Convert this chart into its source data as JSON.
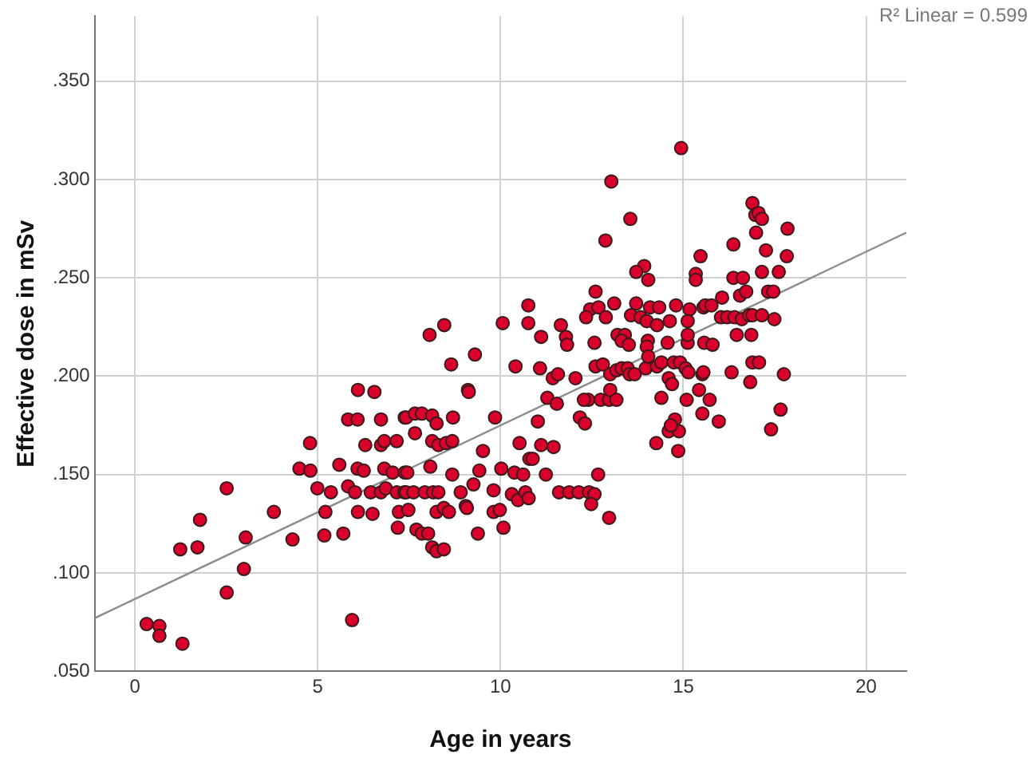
{
  "chart_data": {
    "type": "scatter",
    "xlabel": "Age in years",
    "ylabel": "Effective dose in mSv",
    "annotations": [
      "R² Linear = 0.599"
    ],
    "xlim": [
      -1.1,
      21.1
    ],
    "ylim": [
      0.05,
      0.383
    ],
    "xticks": [
      0,
      5,
      10,
      15,
      20
    ],
    "yticks": [
      {
        "value": 0.05,
        "label": ".050"
      },
      {
        "value": 0.1,
        "label": ".100"
      },
      {
        "value": 0.15,
        "label": ".150"
      },
      {
        "value": 0.2,
        "label": ".200"
      },
      {
        "value": 0.25,
        "label": ".250"
      },
      {
        "value": 0.3,
        "label": ".300"
      },
      {
        "value": 0.35,
        "label": ".350"
      }
    ],
    "grid": true,
    "legend": false,
    "marker": "circle",
    "series": [
      {
        "type": "scatter",
        "color": "#d9002c",
        "x": [
          0.32,
          0.67,
          0.67,
          1.3,
          1.24,
          1.71,
          1.78,
          2.51,
          2.51,
          2.98,
          3.03,
          3.8,
          4.31,
          4.5,
          4.79,
          4.8,
          4.99,
          5.21,
          5.18,
          5.36,
          5.59,
          5.7,
          5.83,
          5.83,
          5.94,
          6.02,
          6.09,
          6.1,
          6.09,
          6.1,
          6.26,
          6.3,
          6.45,
          6.5,
          6.55,
          6.73,
          6.73,
          6.73,
          6.82,
          6.82,
          6.86,
          7.05,
          7.16,
          7.16,
          7.19,
          7.22,
          7.37,
          7.38,
          7.38,
          8.65,
          10.41,
          11.08,
          11.43,
          11.57,
          12.05,
          12.6,
          12.8,
          13.0,
          13.17,
          13.31,
          13.48,
          13.53,
          13.67,
          13.97,
          14.28,
          14.4,
          14.74,
          14.91,
          15.06,
          15.14,
          9.11,
          9.13,
          11.28,
          11.54,
          12.4,
          12.28,
          12.74,
          12.97,
          13.0,
          13.17,
          14.4,
          14.6,
          14.69,
          15.09,
          15.52,
          15.52,
          7.42,
          7.66,
          7.85,
          8.13,
          8.25,
          8.7,
          7.66,
          8.13,
          8.3,
          8.51,
          8.68,
          9.85,
          11.02,
          12.17,
          12.31,
          14.26,
          14.6,
          14.77,
          14.88,
          14.86,
          14.66,
          10.52,
          11.11,
          11.45,
          9.52,
          10.79,
          10.88,
          7.45,
          8.08,
          8.68,
          9.42,
          10.02,
          10.38,
          10.62,
          11.24,
          12.67,
          7.42,
          7.62,
          7.93,
          8.16,
          8.3,
          8.91,
          9.26,
          9.81,
          10.31,
          10.48,
          10.68,
          10.77,
          11.6,
          11.88,
          12.14,
          12.42,
          12.57,
          12.48,
          12.97,
          7.48,
          7.7,
          7.85,
          8.02,
          8.25,
          8.45,
          8.59,
          9.05,
          9.08,
          9.38,
          9.81,
          9.98,
          10.08,
          8.13,
          8.25,
          8.45,
          14.94,
          13.03,
          13.55,
          12.87,
          13.93,
          13.71,
          14.04,
          15.47,
          15.34,
          15.34,
          12.6,
          10.76,
          12.45,
          12.68,
          13.11,
          13.71,
          14.09,
          14.34,
          14.8,
          15.17,
          15.55,
          12.34,
          12.88,
          13.57,
          13.83,
          14.0,
          14.63,
          15.12,
          10.06,
          10.76,
          11.65,
          8.06,
          8.46,
          14.28,
          11.11,
          11.79,
          11.82,
          12.57,
          13.2,
          13.4,
          13.31,
          13.51,
          14.03,
          14.0,
          14.57,
          15.12,
          15.12,
          15.57,
          9.3,
          14.04,
          16.89,
          16.97,
          17.06,
          17.15,
          16.99,
          17.85,
          16.37,
          17.26,
          17.83,
          16.37,
          16.63,
          17.15,
          17.61,
          16.06,
          16.55,
          16.72,
          17.32,
          17.46,
          15.6,
          15.77,
          16.03,
          16.2,
          16.4,
          16.6,
          16.8,
          16.89,
          17.15,
          17.49,
          16.46,
          16.86,
          15.8,
          16.89,
          17.07,
          16.32,
          15.55,
          17.75,
          16.83,
          15.43,
          15.72,
          17.66,
          15.97,
          17.4
        ],
        "values": [
          0.074,
          0.073,
          0.068,
          0.064,
          0.112,
          0.113,
          0.127,
          0.143,
          0.09,
          0.102,
          0.118,
          0.131,
          0.117,
          0.153,
          0.166,
          0.152,
          0.143,
          0.131,
          0.119,
          0.141,
          0.155,
          0.12,
          0.178,
          0.144,
          0.076,
          0.141,
          0.178,
          0.193,
          0.153,
          0.131,
          0.152,
          0.165,
          0.141,
          0.13,
          0.192,
          0.178,
          0.165,
          0.141,
          0.167,
          0.153,
          0.143,
          0.151,
          0.167,
          0.141,
          0.123,
          0.131,
          0.141,
          0.179,
          0.151,
          0.206,
          0.205,
          0.204,
          0.199,
          0.201,
          0.199,
          0.205,
          0.206,
          0.201,
          0.203,
          0.204,
          0.204,
          0.201,
          0.201,
          0.204,
          0.205,
          0.207,
          0.207,
          0.207,
          0.204,
          0.202,
          0.193,
          0.192,
          0.189,
          0.186,
          0.188,
          0.188,
          0.188,
          0.188,
          0.193,
          0.188,
          0.189,
          0.199,
          0.196,
          0.188,
          0.201,
          0.181,
          0.179,
          0.181,
          0.181,
          0.18,
          0.176,
          0.179,
          0.171,
          0.167,
          0.165,
          0.166,
          0.167,
          0.179,
          0.177,
          0.179,
          0.176,
          0.166,
          0.172,
          0.178,
          0.172,
          0.162,
          0.175,
          0.166,
          0.165,
          0.164,
          0.162,
          0.158,
          0.158,
          0.151,
          0.154,
          0.15,
          0.152,
          0.153,
          0.151,
          0.15,
          0.15,
          0.15,
          0.141,
          0.141,
          0.141,
          0.141,
          0.141,
          0.141,
          0.145,
          0.142,
          0.14,
          0.137,
          0.141,
          0.138,
          0.141,
          0.141,
          0.141,
          0.141,
          0.14,
          0.135,
          0.128,
          0.132,
          0.122,
          0.12,
          0.12,
          0.131,
          0.133,
          0.131,
          0.134,
          0.133,
          0.12,
          0.131,
          0.132,
          0.123,
          0.113,
          0.111,
          0.112,
          0.316,
          0.299,
          0.28,
          0.269,
          0.256,
          0.253,
          0.249,
          0.261,
          0.252,
          0.249,
          0.243,
          0.236,
          0.234,
          0.235,
          0.237,
          0.237,
          0.235,
          0.235,
          0.236,
          0.234,
          0.235,
          0.23,
          0.23,
          0.231,
          0.23,
          0.228,
          0.228,
          0.228,
          0.227,
          0.227,
          0.226,
          0.221,
          0.226,
          0.226,
          0.22,
          0.22,
          0.216,
          0.217,
          0.221,
          0.221,
          0.218,
          0.216,
          0.218,
          0.215,
          0.217,
          0.217,
          0.221,
          0.217,
          0.211,
          0.21,
          0.288,
          0.282,
          0.283,
          0.28,
          0.273,
          0.275,
          0.267,
          0.264,
          0.261,
          0.25,
          0.25,
          0.253,
          0.253,
          0.24,
          0.241,
          0.243,
          0.243,
          0.243,
          0.236,
          0.236,
          0.23,
          0.23,
          0.23,
          0.229,
          0.231,
          0.231,
          0.231,
          0.229,
          0.221,
          0.221,
          0.216,
          0.207,
          0.207,
          0.202,
          0.202,
          0.201,
          0.197,
          0.193,
          0.188,
          0.183,
          0.177,
          0.173
        ]
      },
      {
        "type": "line",
        "color": "#8c8c8c",
        "marker": "none",
        "x": [
          -1.1,
          21.1
        ],
        "values": [
          0.077,
          0.273
        ]
      }
    ]
  }
}
